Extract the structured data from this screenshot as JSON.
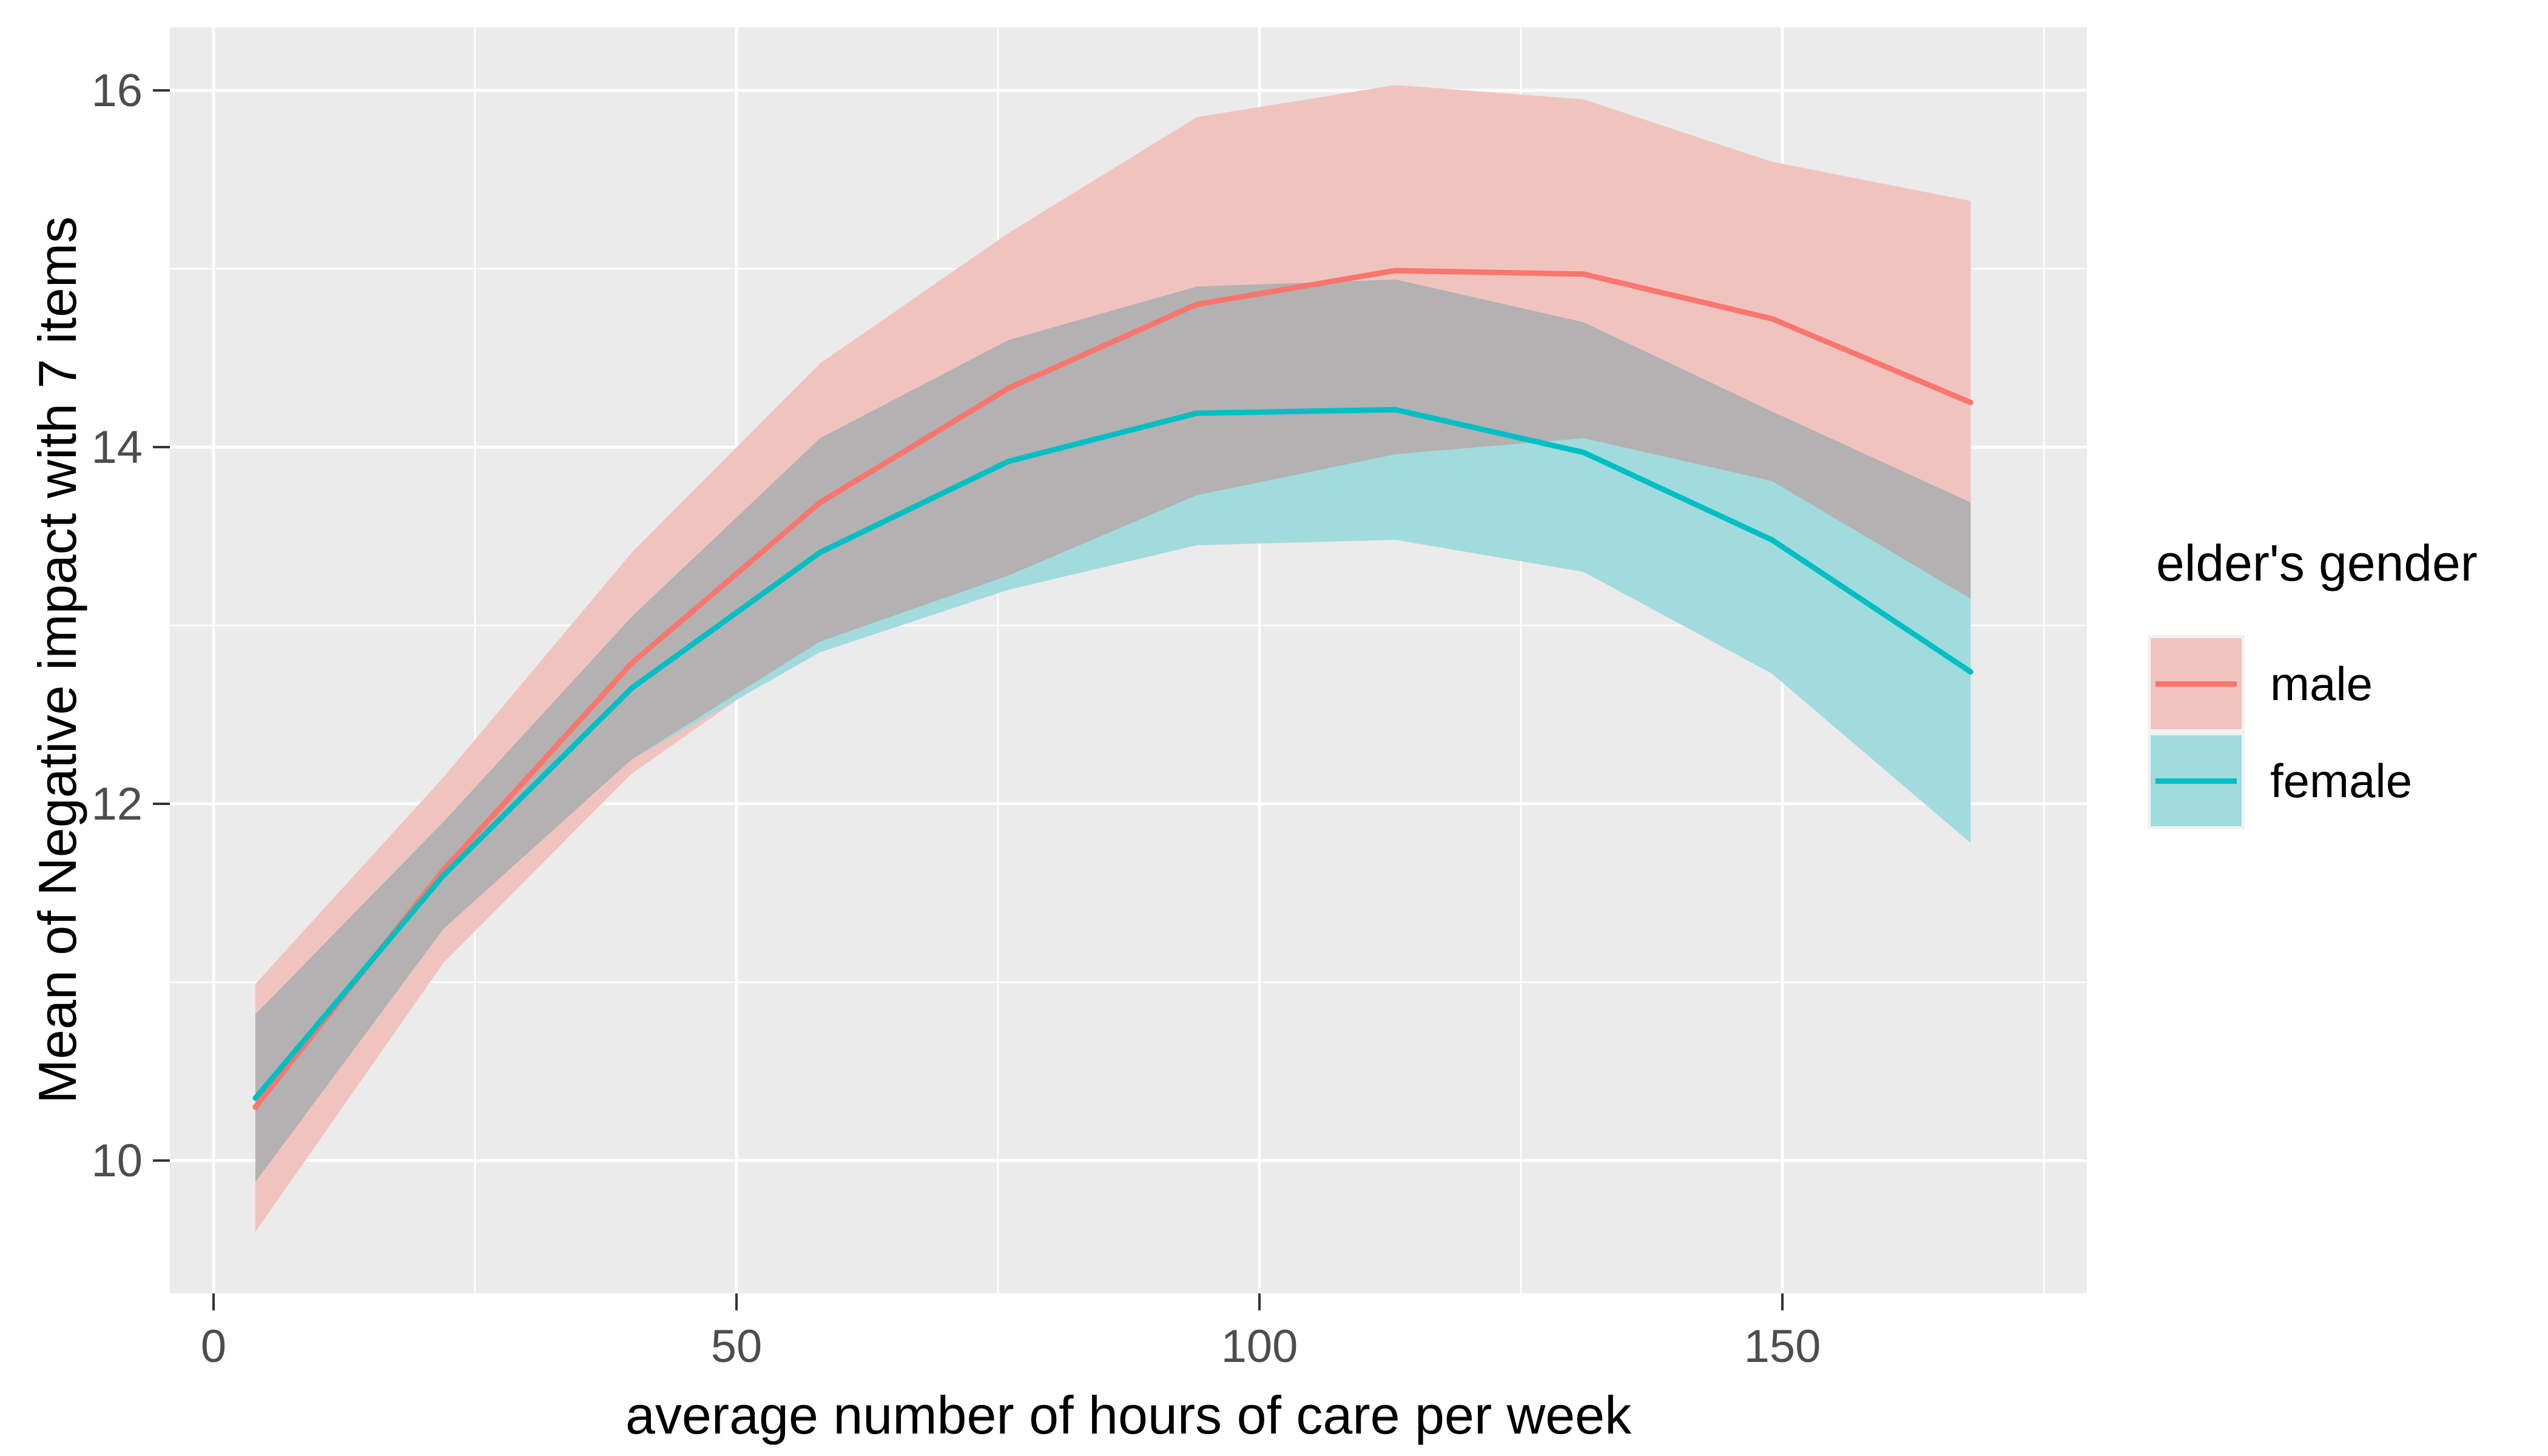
{
  "chart_data": {
    "type": "line",
    "xlabel": "average number of hours of care per week",
    "ylabel": "Mean of Negative impact with 7 items",
    "x": [
      4,
      22,
      40,
      58,
      76,
      94,
      113,
      131,
      149,
      168
    ],
    "series": [
      {
        "name": "male",
        "line_color": "#F8766D",
        "ribbon_fill": "#F1C3BF",
        "y": [
          10.3,
          11.63,
          12.79,
          13.69,
          14.33,
          14.8,
          14.99,
          14.97,
          14.72,
          14.25
        ],
        "y_upper": [
          10.99,
          12.15,
          13.41,
          14.47,
          15.2,
          15.85,
          16.03,
          15.95,
          15.6,
          15.38
        ],
        "y_lower": [
          9.6,
          11.11,
          12.17,
          12.91,
          13.28,
          13.73,
          13.96,
          14.05,
          13.81,
          13.15
        ]
      },
      {
        "name": "female",
        "line_color": "#00BFC4",
        "ribbon_fill": "#A1DBDE",
        "y": [
          10.35,
          11.6,
          12.65,
          13.41,
          13.92,
          14.19,
          14.21,
          13.97,
          13.48,
          12.74
        ],
        "y_upper": [
          10.82,
          11.9,
          13.05,
          14.05,
          14.6,
          14.9,
          14.94,
          14.7,
          14.2,
          13.69
        ],
        "y_lower": [
          9.88,
          11.3,
          12.25,
          12.85,
          13.2,
          13.45,
          13.48,
          13.3,
          12.73,
          11.78
        ]
      }
    ],
    "ribbon_overlap_fill": "#B3B1B1",
    "x_ticks": [
      0,
      50,
      100,
      150
    ],
    "x_minor": [
      25,
      75,
      125,
      175
    ],
    "y_ticks": [
      10,
      12,
      14,
      16
    ],
    "y_minor": [
      11,
      13,
      15
    ],
    "xlim": [
      -4.2,
      179.2
    ],
    "ylim": [
      9.25,
      16.35
    ],
    "grid": "on",
    "panel_bg": "#EBEBEB",
    "grid_color": "#FFFFFF",
    "tick_color": "#333333",
    "tick_label_color": "#4D4D4D",
    "legend": {
      "title": "elder's gender",
      "position": "right",
      "entries": [
        {
          "label": "male"
        },
        {
          "label": "female"
        }
      ]
    }
  }
}
